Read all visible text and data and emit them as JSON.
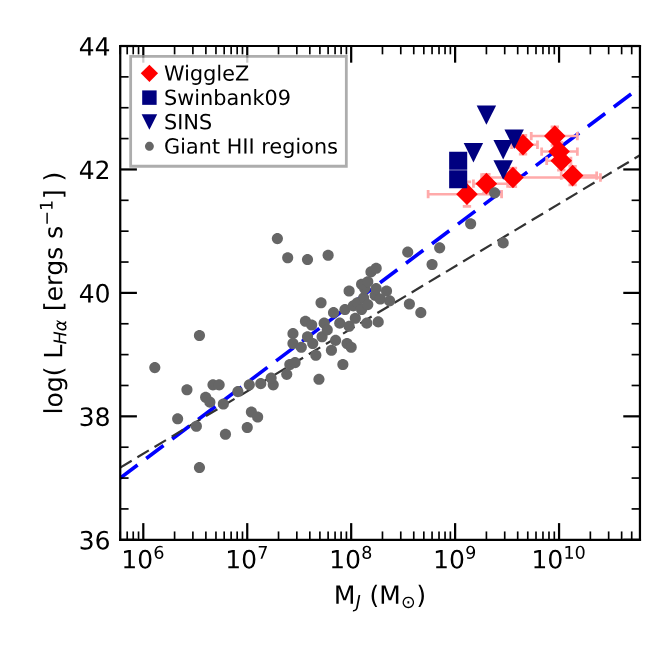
{
  "chart_data": {
    "type": "scatter",
    "xlabel": "M$_{J}$ (M$_{⊙}$)",
    "ylabel": "log( L$_{Hα}$ [ergs s$^{−1}$] )",
    "log": "x",
    "xlim": [
      600000,
      60000000000
    ],
    "ylim": [
      36,
      44
    ],
    "xticks": [
      {
        "value": 1000000,
        "label": "10$^{6}$"
      },
      {
        "value": 10000000,
        "label": "10$^{7}$"
      },
      {
        "value": 100000000,
        "label": "10$^{8}$"
      },
      {
        "value": 1000000000,
        "label": "10$^{9}$"
      },
      {
        "value": 10000000000,
        "label": "10$^{10}$"
      }
    ],
    "yticks": [
      36,
      38,
      40,
      42,
      44
    ],
    "grid": false,
    "legend": "top left",
    "series": [
      {
        "name": "WiggleZ",
        "marker": "diamond",
        "color": "#ff0000",
        "x": [
          1300000000,
          2000000000,
          3600000000,
          4500000000,
          9100000000,
          10000000000,
          10500000000,
          13500000000
        ],
        "values": [
          41.6,
          41.77,
          41.87,
          42.4,
          42.54,
          42.29,
          42.14,
          41.9
        ],
        "xerrors": [
          [
            550000000,
            2800000000
          ],
          [
            1500000000,
            3200000000
          ],
          [
            1800000000,
            25000000000
          ],
          [
            3500000000,
            6200000000
          ],
          [
            5400000000,
            15000000000
          ],
          [
            6800000000,
            15000000000
          ],
          [
            7600000000,
            13000000000
          ],
          [
            10500000000,
            23000000000
          ]
        ],
        "errors": [
          0.2,
          0.15,
          0.15,
          0.15,
          0.15,
          0.15,
          0.15,
          0.15
        ]
      },
      {
        "name": "Swinbank09",
        "marker": "square",
        "color": "#000080",
        "x": [
          1070000000,
          1070000000
        ],
        "values": [
          42.14,
          41.84
        ]
      },
      {
        "name": "SINS",
        "marker": "triangle",
        "color": "#000080",
        "x": [
          2000000000,
          1500000000,
          2900000000,
          3700000000,
          2900000000
        ],
        "values": [
          42.88,
          42.27,
          42.32,
          42.49,
          41.99
        ]
      },
      {
        "name": "Giant HII regions",
        "marker": "circle",
        "color": "#666666",
        "x": [
          19500000,
          24500000,
          38000000,
          60000000,
          350000000,
          710000000,
          1410000000,
          2400000000,
          2900000000,
          600000000,
          155000000,
          174000000,
          1290000,
          2140000,
          2630000,
          3240000,
          3470000,
          3470000,
          3980000,
          4370000,
          4680000,
          5370000,
          5890000,
          6170000,
          8130000,
          10000000,
          10960000,
          12590000,
          10470000,
          13490000,
          17780000,
          16980000,
          23990000,
          25700000,
          28840000,
          27540000,
          27540000,
          33110000,
          36310000,
          38020000,
          41690000,
          42660000,
          45710000,
          48980000,
          51290000,
          52480000,
          54950000,
          58880000,
          64570000,
          67610000,
          70790000,
          77620000,
          83180000,
          87100000,
          91200000,
          95500000,
          95500000,
          100000000,
          104700000,
          109600000,
          114800000,
          125900000,
          131800000,
          134900000,
          141300000,
          144500000,
          169800000,
          173800000,
          182000000,
          190500000,
          218800000,
          234400000,
          363100000,
          467700000,
          125900000,
          144500000
        ],
        "values": [
          40.88,
          40.57,
          40.54,
          40.61,
          40.66,
          40.73,
          41.12,
          41.62,
          40.81,
          40.46,
          40.34,
          40.4,
          38.79,
          37.96,
          38.43,
          37.84,
          39.31,
          37.17,
          38.31,
          38.23,
          38.51,
          38.51,
          38.2,
          37.71,
          38.4,
          37.82,
          38.07,
          37.99,
          38.51,
          38.53,
          38.51,
          38.62,
          38.68,
          38.84,
          38.87,
          39.18,
          39.34,
          39.12,
          39.54,
          39.29,
          39.48,
          39.18,
          38.99,
          38.6,
          39.84,
          39.29,
          39.51,
          39.4,
          39.07,
          39.68,
          39.23,
          39.51,
          38.84,
          39.73,
          39.18,
          39.46,
          40.03,
          39.12,
          39.79,
          39.59,
          39.84,
          39.73,
          39.92,
          40.07,
          39.51,
          39.81,
          39.96,
          40.07,
          39.53,
          39.9,
          40.03,
          39.87,
          39.82,
          39.68,
          40.14,
          40.18
        ]
      },
      {
        "type": "line",
        "line_style": "dashed",
        "color": "#0000ff",
        "x": [
          600000,
          60000000000
        ],
        "values": [
          37.0,
          43.33
        ]
      },
      {
        "type": "line",
        "line_style": "dashed",
        "color": "#333333",
        "x": [
          600000,
          60000000000
        ],
        "values": [
          37.17,
          42.23
        ]
      }
    ]
  }
}
